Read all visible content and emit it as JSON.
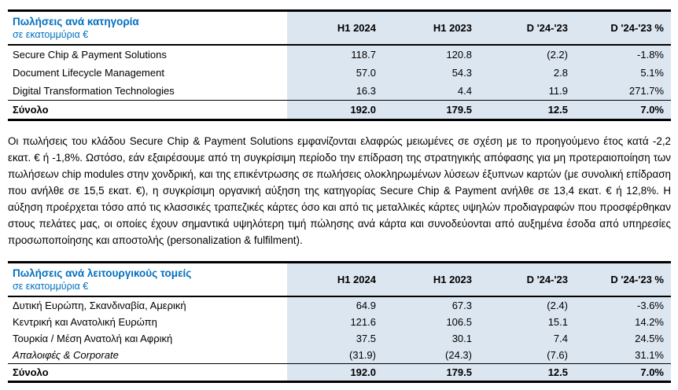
{
  "colors": {
    "accent_blue": "#0070C0",
    "band_light_blue": "#DCE6F1",
    "text_black": "#000000"
  },
  "table1": {
    "title": "Πωλήσεις ανά κατηγορία",
    "subtitle": "σε εκατομμύρια €",
    "columns": [
      "H1 2024",
      "H1 2023",
      "D '24-'23",
      "D '24-'23 %"
    ],
    "rows": [
      {
        "label": "Secure Chip & Payment Solutions",
        "values": [
          "118.7",
          "120.8",
          "(2.2)",
          "-1.8%"
        ]
      },
      {
        "label": "Document Lifecycle Management",
        "values": [
          "57.0",
          "54.3",
          "2.8",
          "5.1%"
        ]
      },
      {
        "label": "Digital Transformation Technologies",
        "values": [
          "16.3",
          "4.4",
          "11.9",
          "271.7%"
        ]
      }
    ],
    "total": {
      "label": "Σύνολο",
      "values": [
        "192.0",
        "179.5",
        "12.5",
        "7.0%"
      ]
    }
  },
  "commentary": "Οι πωλήσεις του κλάδου Secure Chip & Payment Solutions εμφανίζονται ελαφρώς μειωμένες σε σχέση με το προηγούμενο έτος κατά -2,2 εκατ. € ή -1,8%. Ωστόσο, εάν εξαιρέσουμε από τη συγκρίσιμη περίοδο την επίδραση της στρατηγικής απόφασης για μη προτεραιοποίηση των πωλήσεων chip modules στην χονδρική, και της επικέντρωσης σε πωλήσεις ολοκληρωμένων λύσεων έξυπνων καρτών (με συνολική επίδραση που ανήλθε σε 15,5 εκατ. €), η συγκρίσιμη οργανική αύξηση της κατηγορίας Secure Chip & Payment ανήλθε σε 13,4 εκατ. € ή 12,8%. Η αύξηση προέρχεται τόσο από τις κλασσικές τραπεζικές κάρτες όσο και από τις μεταλλικές κάρτες υψηλών προδιαγραφών που προσφέρθηκαν στους πελάτες μας, οι οποίες έχουν σημαντικά υψηλότερη τιμή πώλησης ανά κάρτα και συνοδεύονται από αυξημένα έσοδα από υπηρεσίες προσωποποίησης και αποστολής (personalization & fulfilment).",
  "table2": {
    "title": "Πωλήσεις ανά λειτουργικούς τομείς",
    "subtitle": "σε εκατομμύρια €",
    "columns": [
      "H1 2024",
      "H1 2023",
      "D '24-'23",
      "D '24-'23 %"
    ],
    "rows": [
      {
        "label": "Δυτική Ευρώπη, Σκανδιναβία, Αμερική",
        "values": [
          "64.9",
          "67.3",
          "(2.4)",
          "-3.6%"
        ]
      },
      {
        "label": "Κεντρική και Ανατολική Ευρώπη",
        "values": [
          "121.6",
          "106.5",
          "15.1",
          "14.2%"
        ]
      },
      {
        "label": "Τουρκία / Μέση Ανατολή και Αφρική",
        "values": [
          "37.5",
          "30.1",
          "7.4",
          "24.5%"
        ]
      },
      {
        "label": "Απαλοιφές & Corporate",
        "values": [
          "(31.9)",
          "(24.3)",
          "(7.6)",
          "31.1%"
        ]
      }
    ],
    "total": {
      "label": "Σύνολο",
      "values": [
        "192.0",
        "179.5",
        "12.5",
        "7.0%"
      ]
    }
  }
}
